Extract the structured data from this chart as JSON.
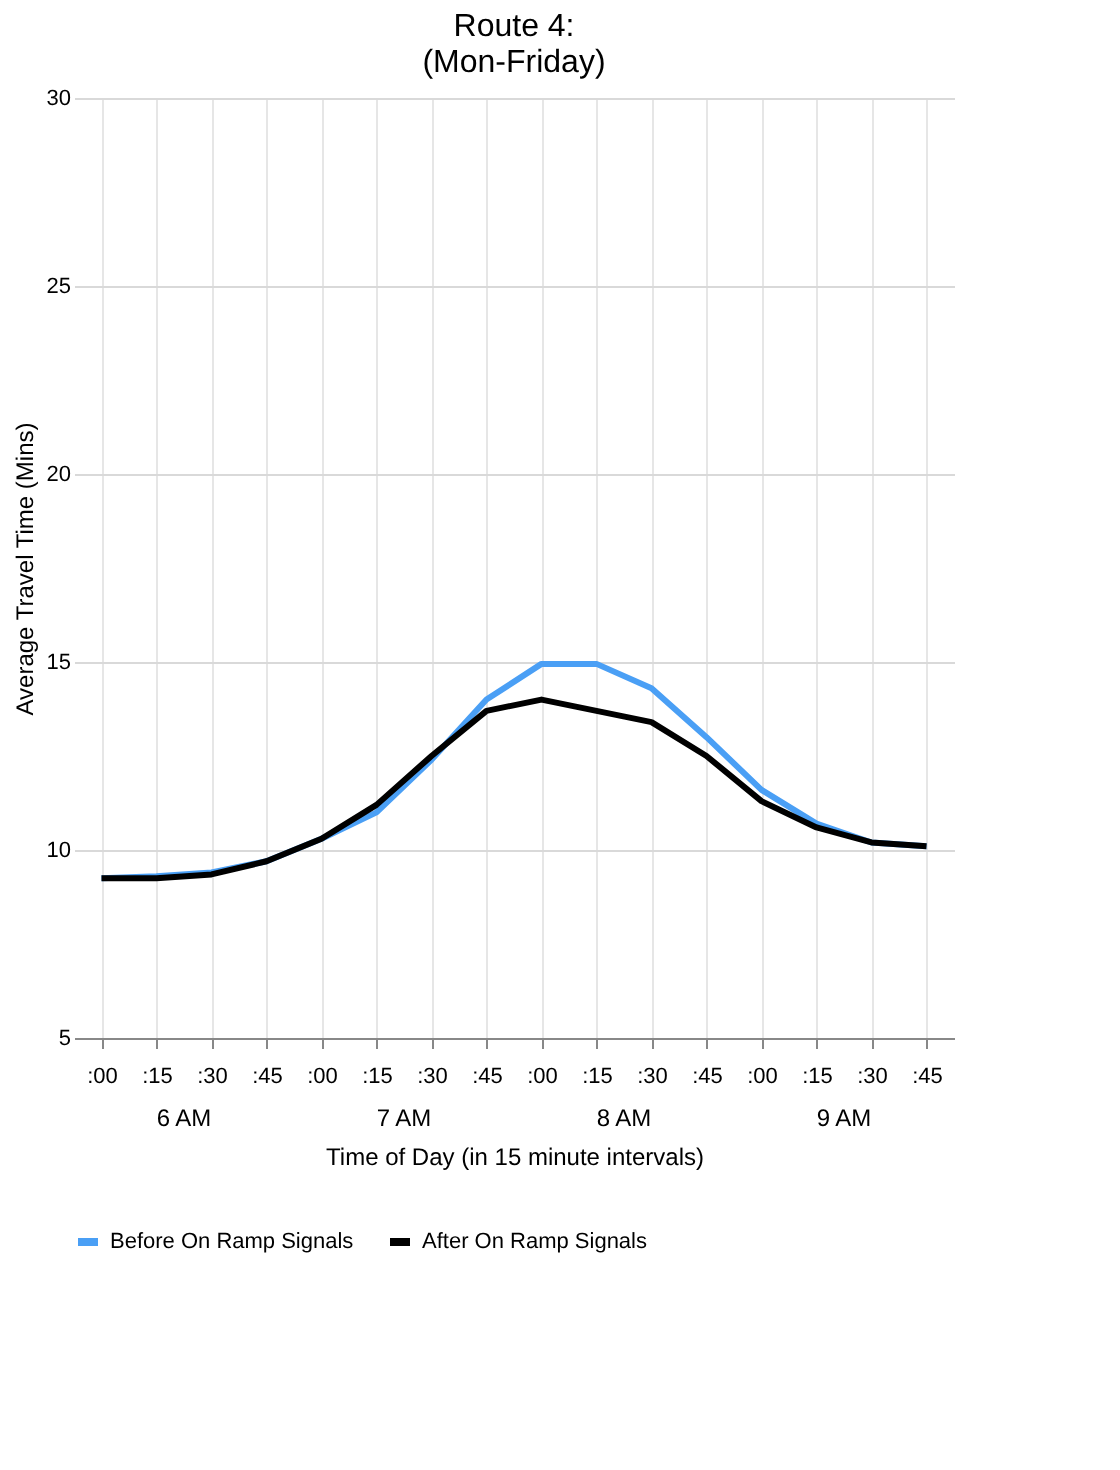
{
  "chart_data": {
    "type": "line",
    "title": [
      "Route 4:",
      "(Mon-Friday)"
    ],
    "xlabel": "Time of Day (in 15 minute intervals)",
    "ylabel": "Average Travel Time (Mins)",
    "categories": [
      ":00",
      ":15",
      ":30",
      ":45",
      ":00",
      ":15",
      ":30",
      ":45",
      ":00",
      ":15",
      ":30",
      ":45",
      ":00",
      ":15",
      ":30",
      ":45"
    ],
    "annotations": [
      "6 AM",
      "7 AM",
      "8 AM",
      "9 AM"
    ],
    "series": [
      {
        "name": "Before On Ramp Signals",
        "color": "#4a9ff5",
        "values": [
          9.25,
          9.3,
          9.4,
          9.7,
          10.3,
          11.0,
          12.4,
          14.0,
          14.95,
          14.95,
          14.3,
          13.0,
          11.6,
          10.7,
          10.2,
          10.1
        ]
      },
      {
        "name": "After On Ramp Signals",
        "color": "#000000",
        "values": [
          9.25,
          9.25,
          9.35,
          9.7,
          10.3,
          11.2,
          12.5,
          13.7,
          14.0,
          13.7,
          13.4,
          12.5,
          11.3,
          10.6,
          10.2,
          10.1
        ]
      }
    ],
    "ylim": [
      5,
      30
    ],
    "yticks": [
      5,
      10,
      15,
      20,
      25,
      30
    ],
    "grid": true,
    "legend": "bottom",
    "marker": "none",
    "line_style": "solid"
  }
}
